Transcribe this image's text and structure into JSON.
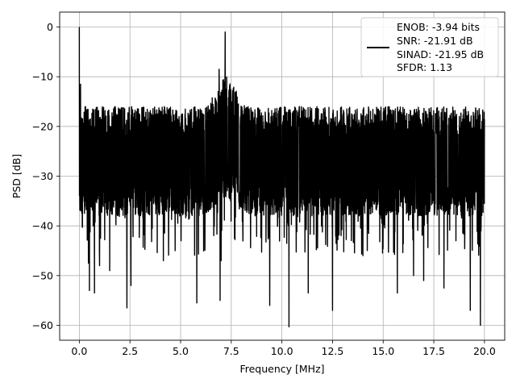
{
  "chart_data": {
    "type": "line",
    "xlabel": "Frequency [MHz]",
    "ylabel": "PSD [dB]",
    "xlim": [
      -0.97,
      21.0
    ],
    "ylim": [
      -63.0,
      3.0
    ],
    "grid": true,
    "x_ticks": [
      0.0,
      2.5,
      5.0,
      7.5,
      10.0,
      12.5,
      15.0,
      17.5,
      20.0
    ],
    "x_tick_labels": [
      "0.0",
      "2.5",
      "5.0",
      "7.5",
      "10.0",
      "12.5",
      "15.0",
      "17.5",
      "20.0"
    ],
    "y_ticks": [
      0,
      -10,
      -20,
      -30,
      -40,
      -50,
      -60
    ],
    "y_tick_labels": [
      "0",
      "−10",
      "−20",
      "−30",
      "−40",
      "−50",
      "−60"
    ],
    "legend": {
      "placement": "top-right",
      "lines": [
        "ENOB: -3.94 bits",
        "SNR: -21.91 dB",
        "SINAD: -21.95 dB",
        "SFDR: 1.13"
      ]
    },
    "series": [
      {
        "color": "#000000",
        "x_range": [
          0.0,
          20.0
        ],
        "noise_floor_db": -24.5,
        "upper_envelope_db": -16.0,
        "lower_envelope_db": -38.0,
        "peaks": [
          {
            "x": 0.0,
            "y": 0.0
          },
          {
            "x": 0.06,
            "y": -11.5
          },
          {
            "x": 7.2,
            "y": -1.0
          },
          {
            "x": 6.9,
            "y": -8.5
          }
        ],
        "dips": [
          {
            "x": 0.45,
            "y": -47.5
          },
          {
            "x": 0.5,
            "y": -53.0
          },
          {
            "x": 0.75,
            "y": -53.5
          },
          {
            "x": 1.0,
            "y": -48.0
          },
          {
            "x": 1.5,
            "y": -49.0
          },
          {
            "x": 2.35,
            "y": -56.5
          },
          {
            "x": 2.55,
            "y": -52.0
          },
          {
            "x": 4.15,
            "y": -47.0
          },
          {
            "x": 5.8,
            "y": -55.5
          },
          {
            "x": 6.95,
            "y": -55.0
          },
          {
            "x": 7.0,
            "y": -47.0
          },
          {
            "x": 9.4,
            "y": -56.0
          },
          {
            "x": 10.35,
            "y": -60.3
          },
          {
            "x": 11.3,
            "y": -53.5
          },
          {
            "x": 12.5,
            "y": -57.0
          },
          {
            "x": 14.0,
            "y": -46.0
          },
          {
            "x": 15.7,
            "y": -53.5
          },
          {
            "x": 16.5,
            "y": -50.0
          },
          {
            "x": 17.0,
            "y": -51.0
          },
          {
            "x": 18.0,
            "y": -52.5
          },
          {
            "x": 19.3,
            "y": -57.0
          },
          {
            "x": 19.8,
            "y": -60.0
          }
        ]
      }
    ]
  }
}
